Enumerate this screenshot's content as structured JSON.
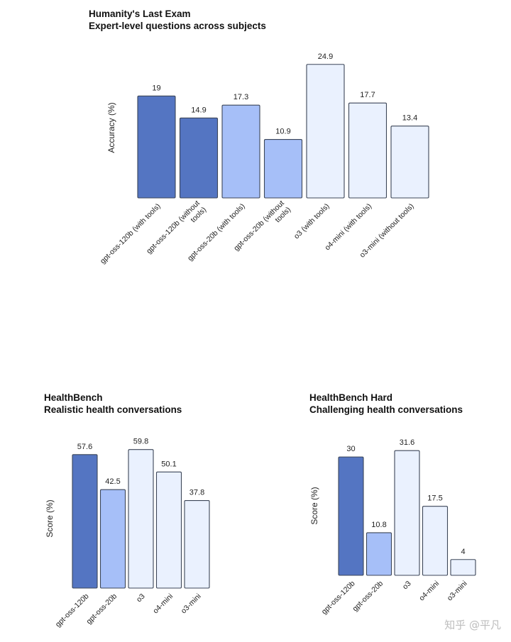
{
  "colors": {
    "dark": "#5475C2",
    "mid": "#A6BFF8",
    "light": "#EAF1FE",
    "stroke": "#3C4658"
  },
  "chart_data": [
    {
      "id": "hle",
      "type": "bar",
      "title": "Humanity's Last Exam",
      "subtitle": "Expert-level questions across subjects",
      "ylabel": "Accuracy (%)",
      "ylim": [
        0,
        25
      ],
      "grid": false,
      "categories": [
        [
          "gpt-oss-120b (with tools)"
        ],
        [
          "gpt-oss-120b (without",
          "tools)"
        ],
        [
          "gpt-oss-20b (with tools)"
        ],
        [
          "gpt-oss-20b (without",
          "tools)"
        ],
        [
          "o3 (with tools)"
        ],
        [
          "o4-mini (with tools)"
        ],
        [
          "o3-mini (without tools)"
        ]
      ],
      "values": [
        19,
        14.9,
        17.3,
        10.9,
        24.9,
        17.7,
        13.4
      ],
      "value_labels": [
        "19",
        "14.9",
        "17.3",
        "10.9",
        "24.9",
        "17.7",
        "13.4"
      ],
      "bar_colors": [
        "dark",
        "dark",
        "mid",
        "mid",
        "light",
        "light",
        "light"
      ]
    },
    {
      "id": "hb",
      "type": "bar",
      "title": "HealthBench",
      "subtitle": "Realistic health conversations",
      "ylabel": "Score (%)",
      "ylim": [
        0,
        60
      ],
      "grid": false,
      "categories": [
        [
          "gpt-oss-120b"
        ],
        [
          "gpt-oss-20b"
        ],
        [
          "o3"
        ],
        [
          "o4-mini"
        ],
        [
          "o3-mini"
        ]
      ],
      "values": [
        57.6,
        42.5,
        59.8,
        50.1,
        37.8
      ],
      "value_labels": [
        "57.6",
        "42.5",
        "59.8",
        "50.1",
        "37.8"
      ],
      "bar_colors": [
        "dark",
        "mid",
        "light",
        "light",
        "light"
      ]
    },
    {
      "id": "hbh",
      "type": "bar",
      "title": "HealthBench Hard",
      "subtitle": "Challenging health conversations",
      "ylabel": "Score (%)",
      "ylim": [
        0,
        32
      ],
      "grid": false,
      "categories": [
        [
          "gpt-oss-120b"
        ],
        [
          "gpt-oss-20b"
        ],
        [
          "o3"
        ],
        [
          "o4-mini"
        ],
        [
          "o3-mini"
        ]
      ],
      "values": [
        30,
        10.8,
        31.6,
        17.5,
        4
      ],
      "value_labels": [
        "30",
        "10.8",
        "31.6",
        "17.5",
        "4"
      ],
      "bar_colors": [
        "dark",
        "mid",
        "light",
        "light",
        "light"
      ]
    }
  ],
  "watermark": "知乎 @平凡"
}
